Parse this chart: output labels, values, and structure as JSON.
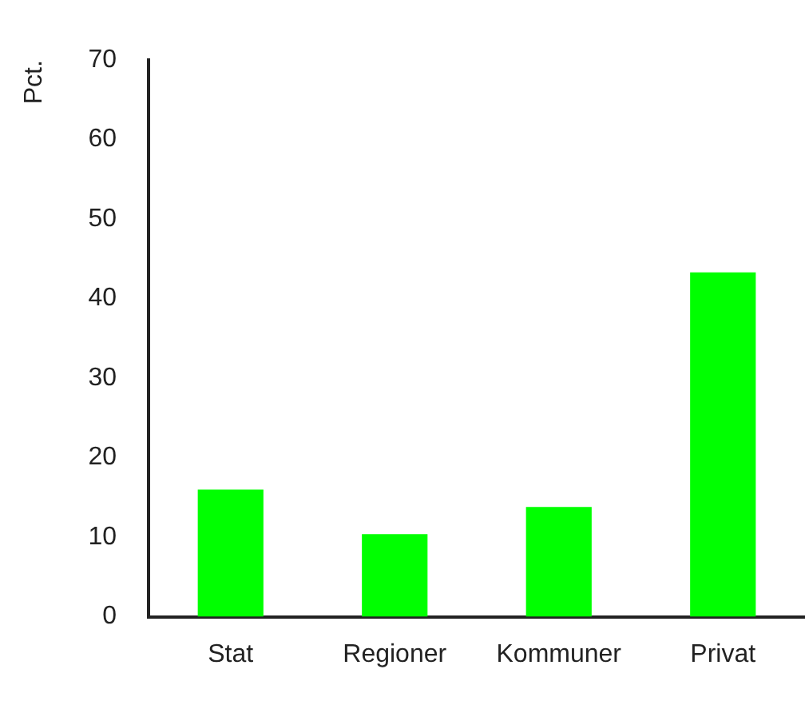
{
  "chart_data": {
    "type": "bar",
    "ylabel": "Pct.",
    "categories": [
      "Stat",
      "Regioner",
      "Kommuner",
      "Privat"
    ],
    "values": [
      16,
      10.4,
      13.8,
      43.3
    ],
    "color": "#00ff00",
    "ylim": [
      0,
      70
    ],
    "yticks": [
      0,
      10,
      20,
      30,
      40,
      50,
      60,
      70
    ],
    "grid": false,
    "legend": false
  }
}
